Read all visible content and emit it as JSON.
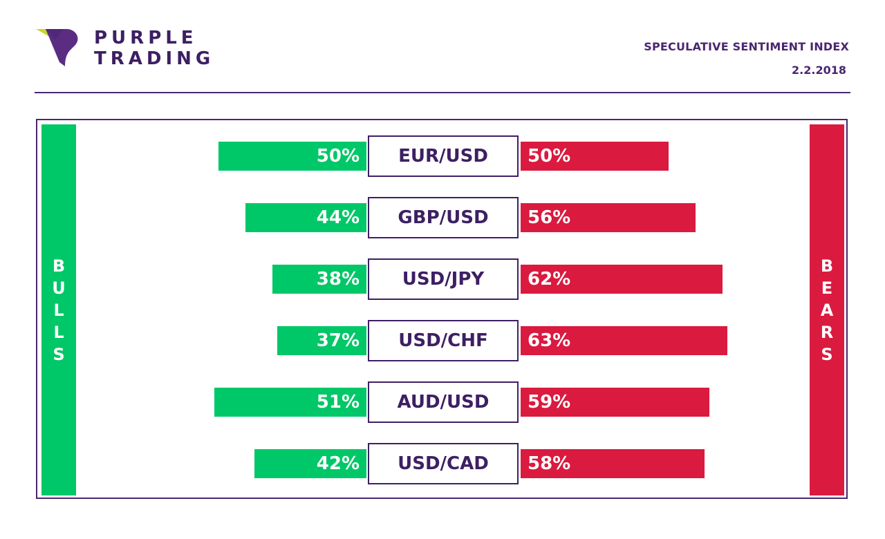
{
  "brand": {
    "line1": "PURPLE",
    "line2": "TRADING"
  },
  "header": {
    "title": "SPECULATIVE SENTIMENT INDEX",
    "date": "2.2.2018"
  },
  "sides": {
    "bulls": "BULLS",
    "bears": "BEARS"
  },
  "colors": {
    "bull": "#00c767",
    "bear": "#da1a3f",
    "purple": "#4a2670"
  },
  "chart_data": {
    "type": "bar",
    "categories": [
      "EUR/USD",
      "GBP/USD",
      "USD/JPY",
      "USD/CHF",
      "AUD/USD",
      "USD/CAD"
    ],
    "series": [
      {
        "name": "BULLS",
        "values": [
          50,
          44,
          38,
          37,
          51,
          42
        ],
        "labels": [
          "50%",
          "44%",
          "38%",
          "37%",
          "51%",
          "42%"
        ]
      },
      {
        "name": "BEARS",
        "values": [
          50,
          56,
          62,
          63,
          59,
          58
        ],
        "labels": [
          "50%",
          "56%",
          "62%",
          "63%",
          "59%",
          "58%"
        ]
      }
    ]
  }
}
